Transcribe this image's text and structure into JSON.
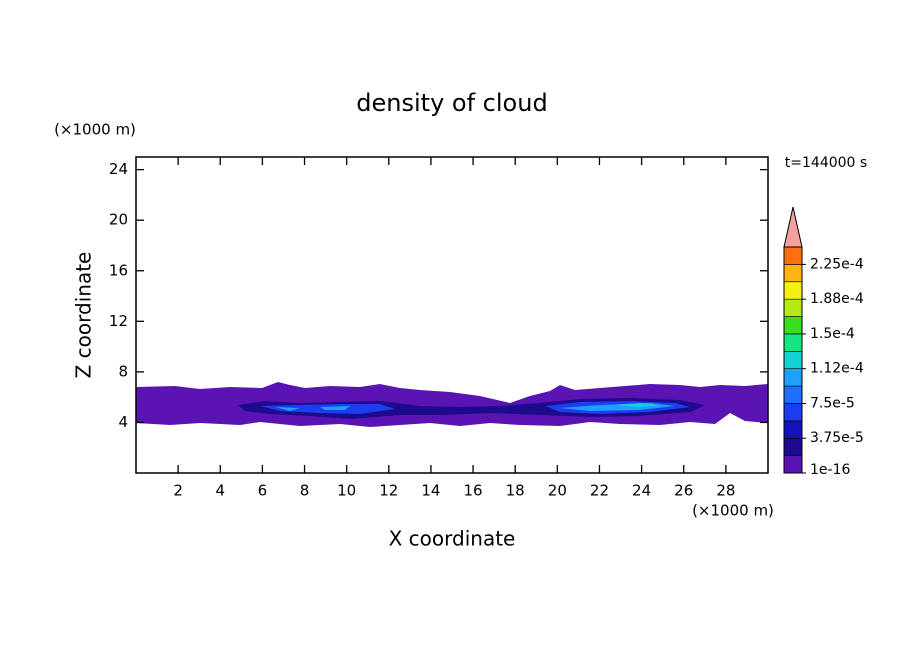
{
  "chart_data": {
    "type": "contour",
    "title": "density of cloud",
    "x_label": "X coordinate",
    "y_label": "Z coordinate",
    "x_unit": "(×1000 m)",
    "y_unit": "(×1000 m)",
    "annotation": "t=144000 s",
    "xlim": [
      0,
      30
    ],
    "ylim": [
      0,
      25
    ],
    "xticks": [
      2,
      4,
      6,
      8,
      10,
      12,
      14,
      16,
      18,
      20,
      22,
      24,
      26,
      28
    ],
    "yticks": [
      4,
      8,
      12,
      16,
      20,
      24
    ],
    "colorbar": {
      "lim": [
        1e-16,
        0.00024375
      ],
      "colors": [
        "#5a14b4",
        "#1e0a8c",
        "#1414be",
        "#1e3cf0",
        "#1e6eff",
        "#1ea0ff",
        "#14d2d2",
        "#14e682",
        "#3cdc1e",
        "#b4eb14",
        "#f5f014",
        "#ffb414",
        "#ff6e14"
      ],
      "extend_color": "#f4a0a0",
      "ticks": [
        {
          "value": 1e-16,
          "label": "1e-16"
        },
        {
          "value": 3.75e-05,
          "label": "3.75e-5"
        },
        {
          "value": 7.5e-05,
          "label": "7.5e-5"
        },
        {
          "value": 0.0001125,
          "label": "1.12e-4"
        },
        {
          "value": 0.00015,
          "label": "1.5e-4"
        },
        {
          "value": 0.0001875,
          "label": "1.88e-4"
        },
        {
          "value": 0.000225,
          "label": "2.25e-4"
        }
      ]
    }
  }
}
